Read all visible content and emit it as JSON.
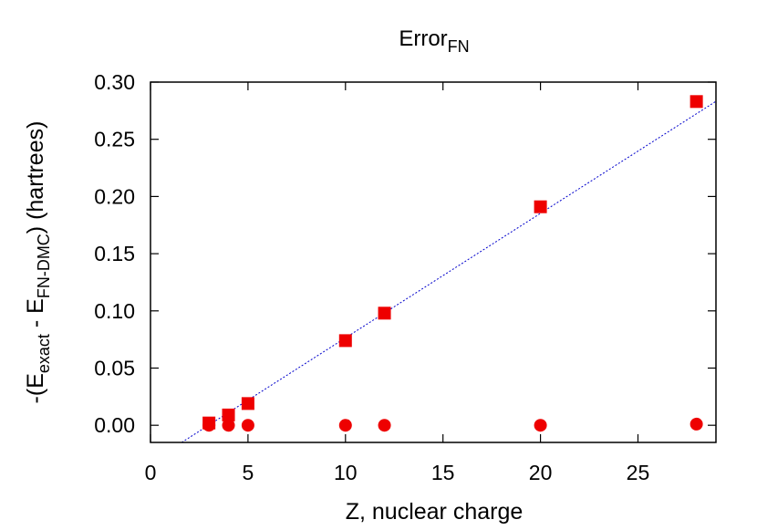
{
  "chart_data": {
    "type": "scatter",
    "title": "Error",
    "title_sub": "FN",
    "xlabel": "Z, nuclear charge",
    "ylabel_parts": [
      "-(E",
      "exact",
      " - E",
      "FN-DMC",
      ") (hartrees)"
    ],
    "xlim": [
      0,
      29
    ],
    "ylim": [
      -0.015,
      0.3
    ],
    "xticks": [
      0,
      5,
      10,
      15,
      20,
      25
    ],
    "xtick_labels": [
      "0",
      "5",
      "10",
      "15",
      "20",
      "25"
    ],
    "yticks": [
      0.0,
      0.05,
      0.1,
      0.15,
      0.2,
      0.25,
      0.3
    ],
    "ytick_labels": [
      "0.00",
      "0.05",
      "0.10",
      "0.15",
      "0.20",
      "0.25",
      "0.30"
    ],
    "grid": false,
    "legend": "none",
    "series": [
      {
        "marker": "square",
        "color": "#ee0000",
        "x": [
          3,
          4,
          5,
          10,
          12,
          20,
          28
        ],
        "y": [
          0.002,
          0.009,
          0.019,
          0.074,
          0.098,
          0.191,
          0.283
        ]
      },
      {
        "marker": "circle",
        "color": "#ee0000",
        "x": [
          3,
          4,
          5,
          10,
          12,
          20,
          28
        ],
        "y": [
          0.0,
          0.0,
          0.0,
          0.0,
          0.0,
          0.0,
          0.001
        ]
      }
    ],
    "fit_line": {
      "style": "dotted",
      "color": "#0000cc",
      "x": [
        1.6,
        29
      ],
      "y": [
        -0.015,
        0.2832
      ]
    }
  }
}
